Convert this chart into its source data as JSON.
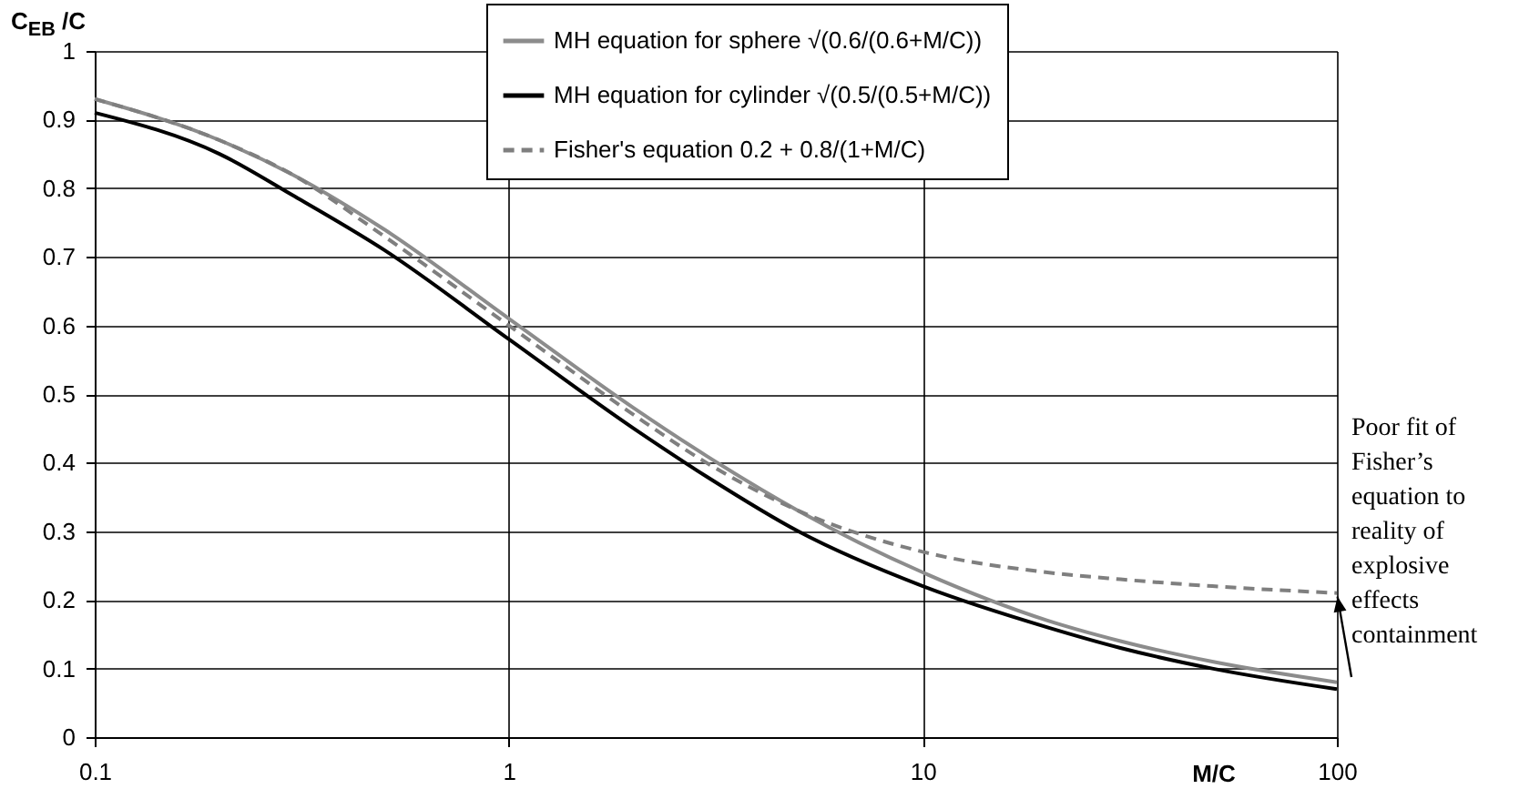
{
  "chart_data": {
    "type": "line",
    "ylabel": "C$_{EB}$ /C",
    "xlabel": "M/C",
    "x": [
      0.1,
      0.2,
      0.3,
      0.5,
      1,
      2,
      3,
      5,
      10,
      20,
      30,
      50,
      100
    ],
    "series": [
      {
        "name": "MH equation for sphere √(0.6/(0.6+M/C))",
        "color": "#8c8c8c",
        "line_style": "solid",
        "values": [
          0.93,
          0.87,
          0.82,
          0.74,
          0.61,
          0.48,
          0.41,
          0.33,
          0.24,
          0.17,
          0.14,
          0.11,
          0.08
        ]
      },
      {
        "name": "MH equation for cylinder √(0.5/(0.5+M/C))",
        "color": "#000000",
        "line_style": "solid",
        "values": [
          0.91,
          0.85,
          0.79,
          0.71,
          0.58,
          0.45,
          0.38,
          0.3,
          0.22,
          0.16,
          0.13,
          0.1,
          0.07
        ]
      },
      {
        "name": "Fisher's equation 0.2 + 0.8/(1+M/C)",
        "color": "#7f7f7f",
        "line_style": "dashed",
        "values": [
          0.93,
          0.87,
          0.82,
          0.73,
          0.6,
          0.47,
          0.4,
          0.33,
          0.27,
          0.24,
          0.23,
          0.22,
          0.21
        ]
      }
    ],
    "xlim": [
      0.1,
      100
    ],
    "xticks": [
      0.1,
      1,
      10,
      100
    ],
    "log": "x",
    "ylim": [
      0,
      1
    ],
    "yticks": [
      0,
      0.1,
      0.2,
      0.3,
      0.4,
      0.5,
      0.6,
      0.7,
      0.8,
      0.9,
      1
    ],
    "grid": true,
    "legend": "top right",
    "marker": "none",
    "annotations": [
      {
        "text": "Poor fit of Fisher’s equation to reality of explosive effects containment",
        "x": 100,
        "y": 0.21
      }
    ]
  }
}
